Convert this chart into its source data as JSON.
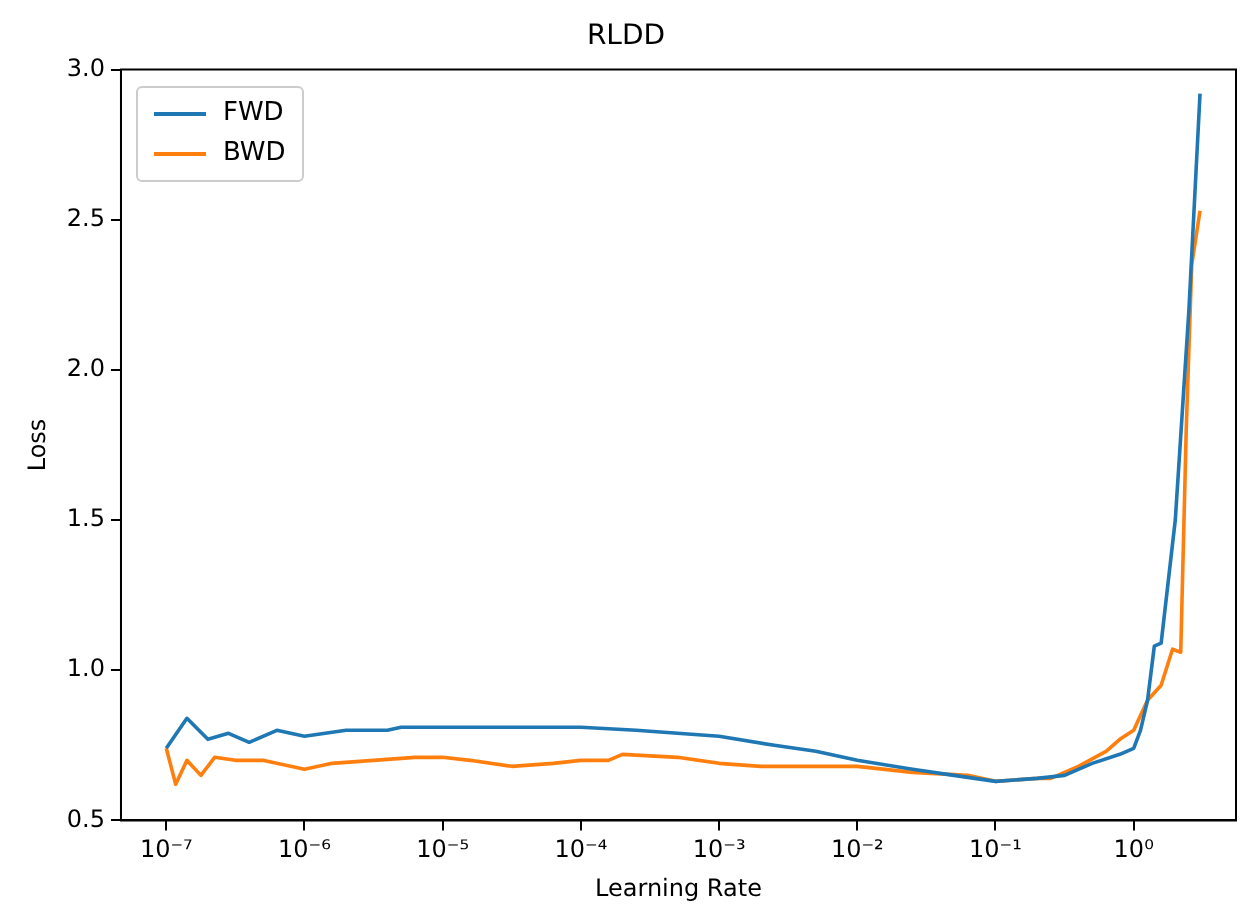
{
  "chart_data": {
    "type": "line",
    "title": "RLDD",
    "xlabel": "Learning Rate",
    "ylabel": "Loss",
    "log": "x",
    "grid": false,
    "legend": "top left",
    "marker": "none",
    "line_style": "solid",
    "xlim": [
      4.7e-08,
      5.5
    ],
    "xticks": [
      {
        "value": 1e-07,
        "label": "10⁻⁷"
      },
      {
        "value": 1e-06,
        "label": "10⁻⁶"
      },
      {
        "value": 1e-05,
        "label": "10⁻⁵"
      },
      {
        "value": 0.0001,
        "label": "10⁻⁴"
      },
      {
        "value": 0.001,
        "label": "10⁻³"
      },
      {
        "value": 0.01,
        "label": "10⁻²"
      },
      {
        "value": 0.1,
        "label": "10⁻¹"
      },
      {
        "value": 1,
        "label": "10⁰"
      }
    ],
    "ylim": [
      0.5,
      3.0
    ],
    "yticks": [
      {
        "value": 0.5,
        "label": "0.5"
      },
      {
        "value": 1.0,
        "label": "1.0"
      },
      {
        "value": 1.5,
        "label": "1.5"
      },
      {
        "value": 2.0,
        "label": "2.0"
      },
      {
        "value": 2.5,
        "label": "2.5"
      },
      {
        "value": 3.0,
        "label": "3.0"
      }
    ],
    "series": [
      {
        "name": "FWD",
        "color": "#1f77b4",
        "x": [
          1e-07,
          1.41e-07,
          2e-07,
          2.82e-07,
          3.98e-07,
          6.31e-07,
          1e-06,
          2e-06,
          3.98e-06,
          5.01e-06,
          1e-05,
          3.16e-05,
          0.0001,
          0.000251,
          0.000501,
          0.001,
          0.00251,
          0.00501,
          0.01,
          0.0251,
          0.0501,
          0.1,
          0.2,
          0.316,
          0.501,
          0.794,
          1,
          1.12,
          1.26,
          1.41,
          1.58,
          2,
          2.51,
          3.02
        ],
        "values": [
          0.74,
          0.84,
          0.77,
          0.79,
          0.76,
          0.8,
          0.78,
          0.8,
          0.8,
          0.81,
          0.81,
          0.81,
          0.81,
          0.8,
          0.79,
          0.78,
          0.75,
          0.73,
          0.7,
          0.67,
          0.65,
          0.63,
          0.64,
          0.65,
          0.69,
          0.72,
          0.74,
          0.8,
          0.9,
          1.08,
          1.09,
          1.5,
          2.2,
          2.92
        ]
      },
      {
        "name": "BWD",
        "color": "#ff7f0e",
        "x": [
          1e-07,
          1.17e-07,
          1.41e-07,
          1.78e-07,
          2.24e-07,
          3.16e-07,
          5.01e-07,
          1e-06,
          1.58e-06,
          3.16e-06,
          6.31e-06,
          1e-05,
          1.58e-05,
          3.16e-05,
          6.31e-05,
          0.0001,
          0.000158,
          0.0002,
          0.000501,
          0.001,
          0.002,
          0.00501,
          0.01,
          0.0251,
          0.0631,
          0.1,
          0.2,
          0.251,
          0.398,
          0.631,
          0.794,
          1,
          1.26,
          1.58,
          1.91,
          2.19,
          2.4,
          2.63,
          3.02
        ],
        "values": [
          0.74,
          0.62,
          0.7,
          0.65,
          0.71,
          0.7,
          0.7,
          0.67,
          0.69,
          0.7,
          0.71,
          0.71,
          0.7,
          0.68,
          0.69,
          0.7,
          0.7,
          0.72,
          0.71,
          0.69,
          0.68,
          0.68,
          0.68,
          0.66,
          0.65,
          0.63,
          0.64,
          0.64,
          0.68,
          0.73,
          0.77,
          0.8,
          0.9,
          0.95,
          1.07,
          1.06,
          1.8,
          2.35,
          2.53
        ]
      }
    ]
  }
}
